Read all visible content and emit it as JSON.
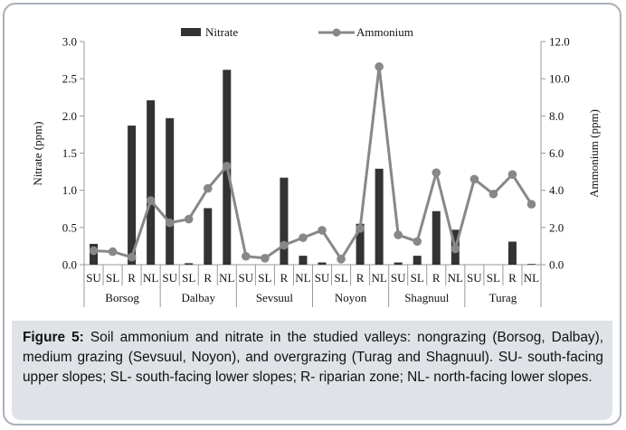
{
  "chart_data": {
    "type": "bar+line",
    "valleys": [
      "Borsog",
      "Dalbay",
      "Sevsuul",
      "Noyon",
      "Shagnuul",
      "Turag"
    ],
    "positions": [
      "SU",
      "SL",
      "R",
      "NL"
    ],
    "categories": [
      "SU",
      "SL",
      "R",
      "NL",
      "SU",
      "SL",
      "R",
      "NL",
      "SU",
      "SL",
      "R",
      "NL",
      "SU",
      "SL",
      "R",
      "NL",
      "SU",
      "SL",
      "R",
      "NL",
      "SU",
      "SL",
      "R",
      "NL"
    ],
    "series": [
      {
        "name": "Nitrate",
        "type": "bar",
        "axis": "left",
        "color": "#333333",
        "values": [
          0.28,
          0.0,
          1.87,
          2.21,
          1.97,
          0.02,
          0.76,
          2.62,
          0.0,
          0.0,
          1.17,
          0.12,
          0.03,
          0.0,
          0.55,
          1.29,
          0.03,
          0.12,
          0.72,
          0.47,
          0.0,
          0.0,
          0.31,
          0.01
        ]
      },
      {
        "name": "Ammonium",
        "type": "line",
        "axis": "right",
        "color": "#888888",
        "values": [
          0.75,
          0.7,
          0.4,
          3.45,
          2.25,
          2.45,
          4.1,
          5.3,
          0.45,
          0.35,
          1.05,
          1.45,
          1.85,
          0.3,
          1.95,
          10.65,
          1.6,
          1.25,
          4.95,
          0.85,
          4.6,
          3.8,
          4.85,
          3.25
        ]
      }
    ],
    "ylabel_left": "Nitrate (ppm)",
    "ylabel_right": "Ammonium  (ppm)",
    "ylim_left": [
      0,
      3.0
    ],
    "ylim_right": [
      0,
      12.0
    ],
    "yticks_left": [
      "0.0",
      "0.5",
      "1.0",
      "1.5",
      "2.0",
      "2.5",
      "3.0"
    ],
    "yticks_right": [
      "0.0",
      "2.0",
      "4.0",
      "6.0",
      "8.0",
      "10.0",
      "12.0"
    ],
    "legend_position": "top-center",
    "grid": false
  },
  "caption": {
    "label": "Figure 5:",
    "text": " Soil ammonium and nitrate in the studied valleys: nongrazing (Borsog, Dalbay), medium grazing (Sevsuul, Noyon), and overgrazing (Turag and Shagnuul). SU- south-facing upper slopes; SL- south-facing lower slopes; R- riparian zone; NL- north-facing lower slopes."
  }
}
